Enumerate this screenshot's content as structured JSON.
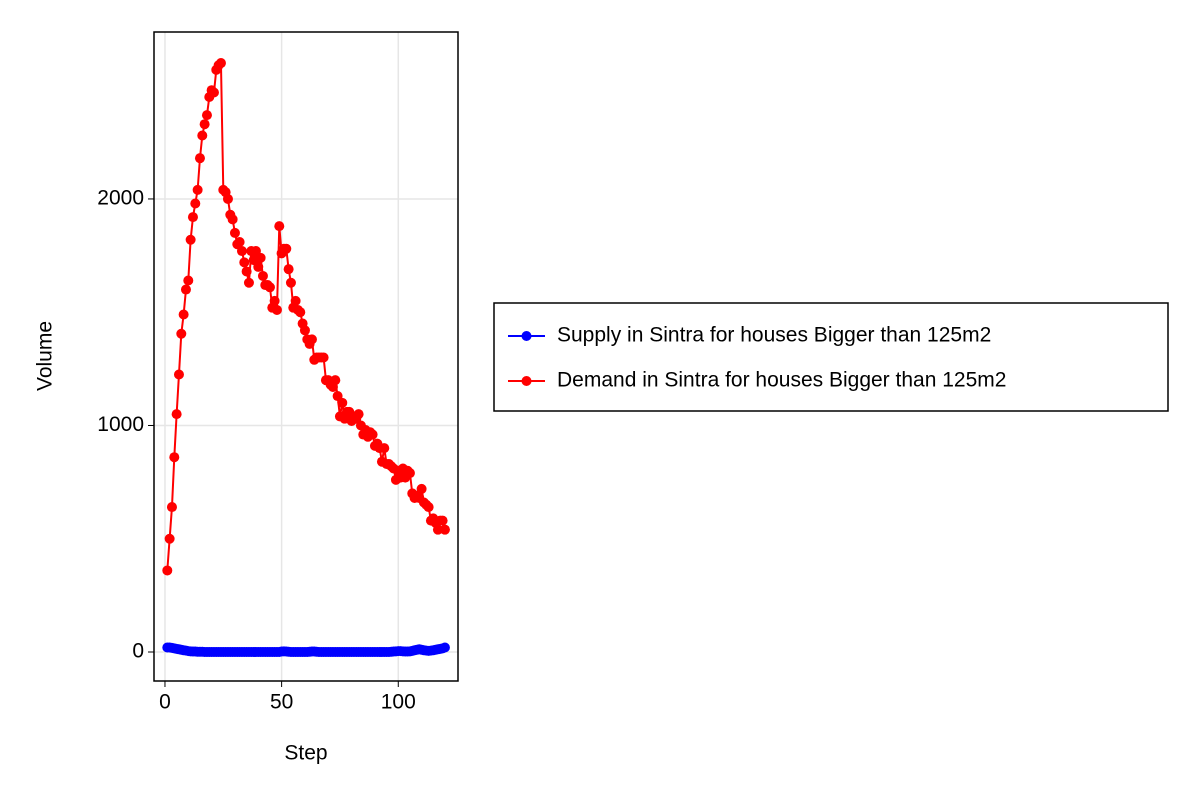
{
  "chart_data": {
    "type": "line",
    "xlabel": "Step",
    "ylabel": "Volume",
    "x": [
      1,
      2,
      3,
      4,
      5,
      6,
      7,
      8,
      9,
      10,
      11,
      12,
      13,
      14,
      15,
      16,
      17,
      18,
      19,
      20,
      21,
      22,
      23,
      24,
      25,
      26,
      27,
      28,
      29,
      30,
      31,
      32,
      33,
      34,
      35,
      36,
      37,
      38,
      39,
      40,
      41,
      42,
      43,
      44,
      45,
      46,
      47,
      48,
      49,
      50,
      51,
      52,
      53,
      54,
      55,
      56,
      57,
      58,
      59,
      60,
      61,
      62,
      63,
      64,
      65,
      66,
      67,
      68,
      69,
      70,
      71,
      72,
      73,
      74,
      75,
      76,
      77,
      78,
      79,
      80,
      81,
      82,
      83,
      84,
      85,
      86,
      87,
      88,
      89,
      90,
      91,
      92,
      93,
      94,
      95,
      96,
      97,
      98,
      99,
      100,
      101,
      102,
      103,
      104,
      105,
      106,
      107,
      108,
      109,
      110,
      111,
      112,
      113,
      114,
      115,
      116,
      117,
      118,
      119,
      120
    ],
    "series": [
      {
        "name": "Supply in Sintra for houses Bigger than 125m2",
        "color": "#0000ff",
        "values": [
          20,
          20,
          18,
          16,
          14,
          12,
          10,
          8,
          6,
          4,
          3,
          2,
          2,
          1,
          1,
          1,
          0,
          0,
          0,
          0,
          0,
          0,
          0,
          0,
          0,
          0,
          0,
          0,
          0,
          0,
          0,
          0,
          0,
          0,
          0,
          0,
          0,
          0,
          0,
          0,
          0,
          0,
          0,
          0,
          0,
          0,
          0,
          0,
          0,
          2,
          3,
          2,
          1,
          0,
          0,
          0,
          0,
          0,
          0,
          0,
          0,
          1,
          2,
          2,
          1,
          0,
          0,
          0,
          0,
          0,
          0,
          0,
          0,
          0,
          0,
          0,
          0,
          0,
          0,
          0,
          0,
          0,
          0,
          0,
          0,
          0,
          0,
          0,
          0,
          0,
          0,
          0,
          0,
          0,
          0,
          0,
          1,
          2,
          3,
          4,
          4,
          3,
          2,
          2,
          3,
          5,
          8,
          10,
          12,
          10,
          8,
          6,
          5,
          6,
          8,
          10,
          12,
          14,
          16,
          20
        ]
      },
      {
        "name": "Demand in Sintra for houses Bigger than 125m2",
        "color": "#ff0000",
        "values": [
          360,
          500,
          640,
          860,
          1050,
          1225,
          1405,
          1490,
          1600,
          1640,
          1820,
          1920,
          1980,
          2040,
          2180,
          2280,
          2330,
          2370,
          2450,
          2480,
          2470,
          2570,
          2590,
          2600,
          2040,
          2030,
          2000,
          1930,
          1910,
          1850,
          1800,
          1810,
          1770,
          1720,
          1680,
          1630,
          1770,
          1730,
          1770,
          1700,
          1740,
          1660,
          1620,
          1620,
          1610,
          1520,
          1550,
          1510,
          1880,
          1760,
          1780,
          1780,
          1690,
          1630,
          1520,
          1550,
          1510,
          1500,
          1450,
          1420,
          1380,
          1360,
          1380,
          1290,
          1300,
          1300,
          1300,
          1300,
          1200,
          1200,
          1180,
          1170,
          1200,
          1130,
          1040,
          1100,
          1030,
          1060,
          1060,
          1020,
          1040,
          1030,
          1050,
          1000,
          960,
          980,
          950,
          970,
          960,
          910,
          920,
          900,
          840,
          900,
          830,
          830,
          820,
          810,
          760,
          800,
          770,
          810,
          770,
          800,
          790,
          700,
          680,
          690,
          680,
          720,
          660,
          650,
          640,
          580,
          590,
          570,
          540,
          580,
          580,
          540
        ]
      }
    ],
    "xlim": [
      -4.7,
      125.6
    ],
    "xticks": [
      0,
      50,
      100
    ],
    "ylim": [
      -128,
      2737
    ],
    "yticks": [
      0,
      1000,
      2000
    ],
    "grid": true,
    "legend": "right"
  }
}
